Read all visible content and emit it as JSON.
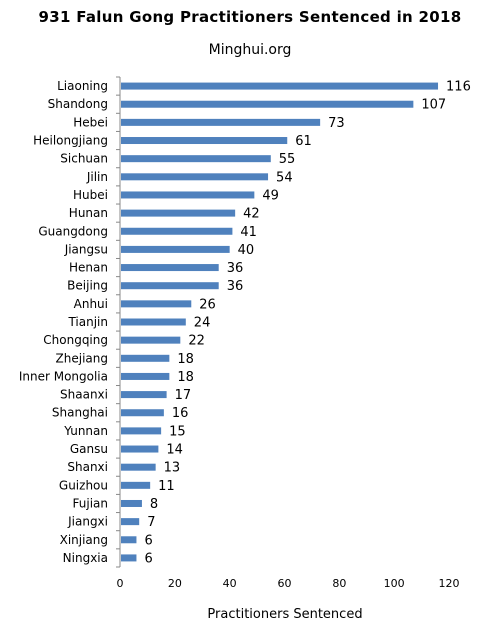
{
  "chart_data": {
    "type": "bar",
    "orientation": "horizontal",
    "title": "931 Falun Gong Practitioners Sentenced in 2018",
    "subtitle": "Minghui.org",
    "xlabel": "Practitioners Sentenced",
    "ylabel": "",
    "xlim": [
      0,
      120
    ],
    "xticks": [
      0,
      20,
      40,
      60,
      80,
      100,
      120
    ],
    "grid": false,
    "legend": "none",
    "bar_color": "#4f81bd",
    "categories": [
      "Liaoning",
      "Shandong",
      "Hebei",
      "Heilongjiang",
      "Sichuan",
      "Jilin",
      "Hubei",
      "Hunan",
      "Guangdong",
      "Jiangsu",
      "Henan",
      "Beijing",
      "Anhui",
      "Tianjin",
      "Chongqing",
      "Zhejiang",
      "Inner Mongolia",
      "Shaanxi",
      "Shanghai",
      "Yunnan",
      "Gansu",
      "Shanxi",
      "Guizhou",
      "Fujian",
      "Jiangxi",
      "Xinjiang",
      "Ningxia"
    ],
    "values": [
      116,
      107,
      73,
      61,
      55,
      54,
      49,
      42,
      41,
      40,
      36,
      36,
      26,
      24,
      22,
      18,
      18,
      17,
      16,
      15,
      14,
      13,
      11,
      8,
      7,
      6,
      6
    ]
  }
}
